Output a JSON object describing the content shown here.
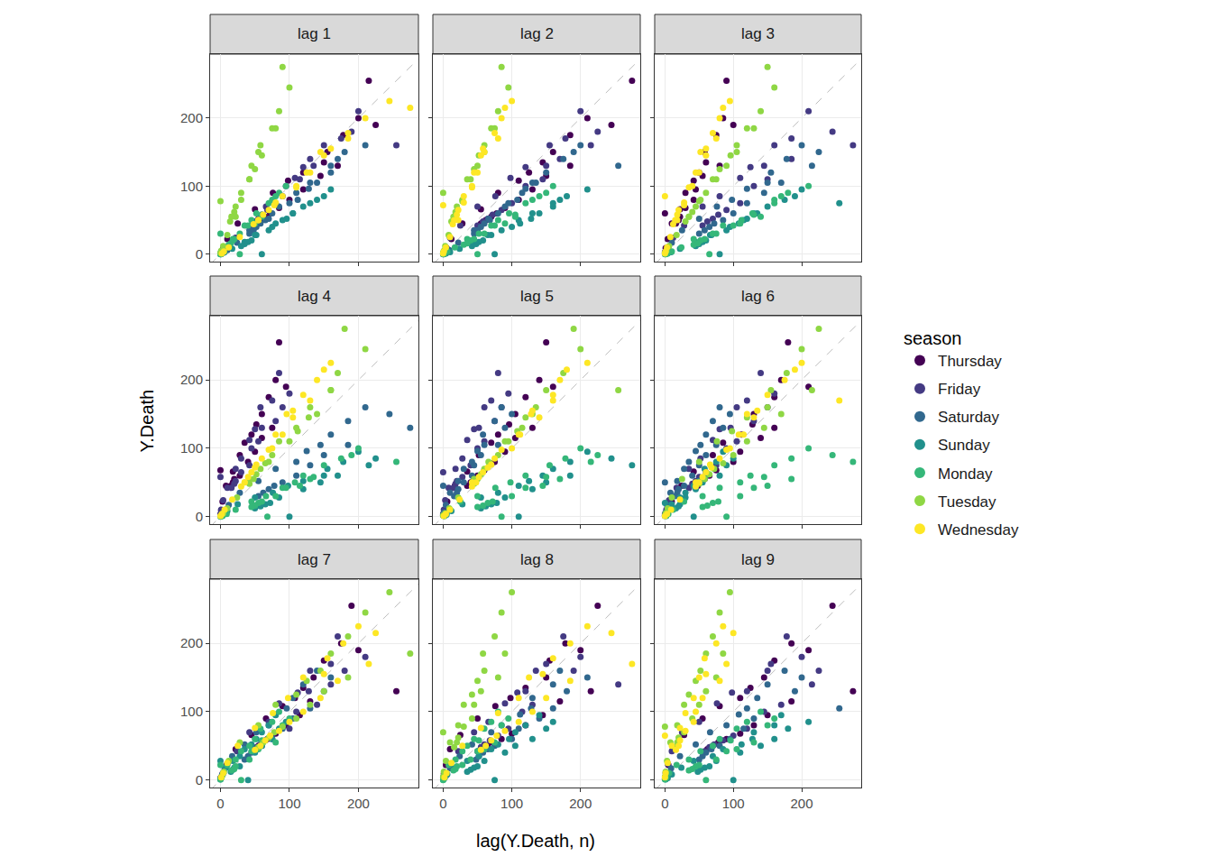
{
  "chart_data": {
    "type": "scatter",
    "x_label": "lag(Y.Death, n)",
    "y_label": "Y.Death",
    "legend_title": "season",
    "panels": [
      {
        "title": "lag 1",
        "lag": 1
      },
      {
        "title": "lag 2",
        "lag": 2
      },
      {
        "title": "lag 3",
        "lag": 3
      },
      {
        "title": "lag 4",
        "lag": 4
      },
      {
        "title": "lag 5",
        "lag": 5
      },
      {
        "title": "lag 6",
        "lag": 6
      },
      {
        "title": "lag 7",
        "lag": 7
      },
      {
        "title": "lag 8",
        "lag": 8
      },
      {
        "title": "lag 9",
        "lag": 9
      }
    ],
    "series": [
      {
        "name": "Thursday",
        "color": "#440154"
      },
      {
        "name": "Friday",
        "color": "#443A83"
      },
      {
        "name": "Saturday",
        "color": "#31688E"
      },
      {
        "name": "Sunday",
        "color": "#21908C"
      },
      {
        "name": "Monday",
        "color": "#35B779"
      },
      {
        "name": "Tuesday",
        "color": "#8FD744"
      },
      {
        "name": "Wednesday",
        "color": "#FDE725"
      }
    ],
    "values": [
      0,
      1,
      0,
      0,
      0,
      2,
      1,
      3,
      4,
      2,
      1,
      1,
      5,
      4,
      9,
      10,
      6,
      3,
      4,
      12,
      10,
      22,
      24,
      17,
      8,
      10,
      28,
      25,
      45,
      42,
      35,
      18,
      22,
      55,
      50,
      66,
      70,
      52,
      28,
      30,
      80,
      76,
      90,
      85,
      70,
      35,
      42,
      110,
      98,
      108,
      112,
      80,
      45,
      50,
      125,
      120,
      120,
      128,
      96,
      52,
      60,
      145,
      150,
      135,
      130,
      105,
      60,
      58,
      160,
      155,
      150,
      160,
      120,
      70,
      75,
      185,
      178,
      175,
      170,
      140,
      80,
      85,
      210,
      200,
      200,
      210,
      160,
      95,
      100,
      245,
      225,
      190,
      180,
      150,
      85,
      90,
      275,
      215,
      255,
      160,
      130,
      75,
      80,
      185,
      170,
      130,
      140,
      105,
      60,
      55,
      150,
      145,
      115,
      110,
      90,
      50,
      45,
      130,
      120,
      95,
      100,
      75,
      40,
      42,
      110,
      100,
      80,
      75,
      60,
      0,
      30,
      90,
      85,
      68,
      65,
      50,
      28,
      0,
      78,
      72,
      60,
      58,
      45,
      20,
      22,
      70,
      65,
      55,
      52,
      40,
      18,
      20,
      62,
      58,
      50,
      48,
      35,
      15,
      16,
      55,
      50,
      45,
      42,
      30,
      12,
      14,
      48,
      44
    ],
    "categories": [
      "Thursday",
      "Friday",
      "Saturday",
      "Sunday",
      "Monday",
      "Tuesday",
      "Wednesday",
      "Thursday",
      "Friday",
      "Saturday",
      "Sunday",
      "Monday",
      "Tuesday",
      "Wednesday",
      "Thursday",
      "Friday",
      "Saturday",
      "Sunday",
      "Monday",
      "Tuesday",
      "Wednesday",
      "Thursday",
      "Friday",
      "Saturday",
      "Sunday",
      "Monday",
      "Tuesday",
      "Wednesday",
      "Thursday",
      "Friday",
      "Saturday",
      "Sunday",
      "Monday",
      "Tuesday",
      "Wednesday",
      "Thursday",
      "Friday",
      "Saturday",
      "Sunday",
      "Monday",
      "Tuesday",
      "Wednesday",
      "Thursday",
      "Friday",
      "Saturday",
      "Sunday",
      "Monday",
      "Tuesday",
      "Wednesday",
      "Thursday",
      "Friday",
      "Saturday",
      "Sunday",
      "Monday",
      "Tuesday",
      "Wednesday",
      "Thursday",
      "Friday",
      "Saturday",
      "Sunday",
      "Monday",
      "Tuesday",
      "Wednesday",
      "Thursday",
      "Friday",
      "Saturday",
      "Sunday",
      "Monday",
      "Tuesday",
      "Wednesday",
      "Thursday",
      "Friday",
      "Saturday",
      "Sunday",
      "Monday",
      "Tuesday",
      "Wednesday",
      "Thursday",
      "Friday",
      "Saturday",
      "Sunday",
      "Monday",
      "Tuesday",
      "Wednesday",
      "Thursday",
      "Friday",
      "Saturday",
      "Sunday",
      "Monday",
      "Tuesday",
      "Wednesday",
      "Thursday",
      "Friday",
      "Saturday",
      "Sunday",
      "Monday",
      "Tuesday",
      "Wednesday",
      "Thursday",
      "Friday",
      "Saturday",
      "Sunday",
      "Monday",
      "Tuesday",
      "Wednesday",
      "Thursday",
      "Friday",
      "Saturday",
      "Sunday",
      "Monday",
      "Tuesday",
      "Wednesday",
      "Thursday",
      "Friday",
      "Saturday",
      "Sunday",
      "Monday",
      "Tuesday",
      "Wednesday",
      "Thursday",
      "Friday",
      "Saturday",
      "Sunday",
      "Monday",
      "Tuesday",
      "Wednesday",
      "Thursday",
      "Friday",
      "Saturday",
      "Sunday",
      "Monday",
      "Tuesday",
      "Wednesday",
      "Thursday",
      "Friday",
      "Saturday",
      "Sunday",
      "Monday",
      "Tuesday",
      "Wednesday",
      "Thursday",
      "Friday",
      "Saturday",
      "Sunday",
      "Monday",
      "Tuesday",
      "Wednesday",
      "Thursday",
      "Friday",
      "Saturday",
      "Sunday",
      "Monday",
      "Tuesday",
      "Wednesday",
      "Thursday",
      "Friday",
      "Saturday",
      "Sunday",
      "Monday",
      "Tuesday",
      "Wednesday",
      "Thursday",
      "Friday",
      "Saturday",
      "Sunday",
      "Monday",
      "Tuesday",
      "Wednesday"
    ],
    "xlim": [
      -15,
      287
    ],
    "ylim": [
      -11,
      294
    ],
    "xticks": [
      0,
      100,
      200
    ],
    "yticks": [
      0,
      100,
      200
    ],
    "grid": true,
    "legend": "right"
  }
}
